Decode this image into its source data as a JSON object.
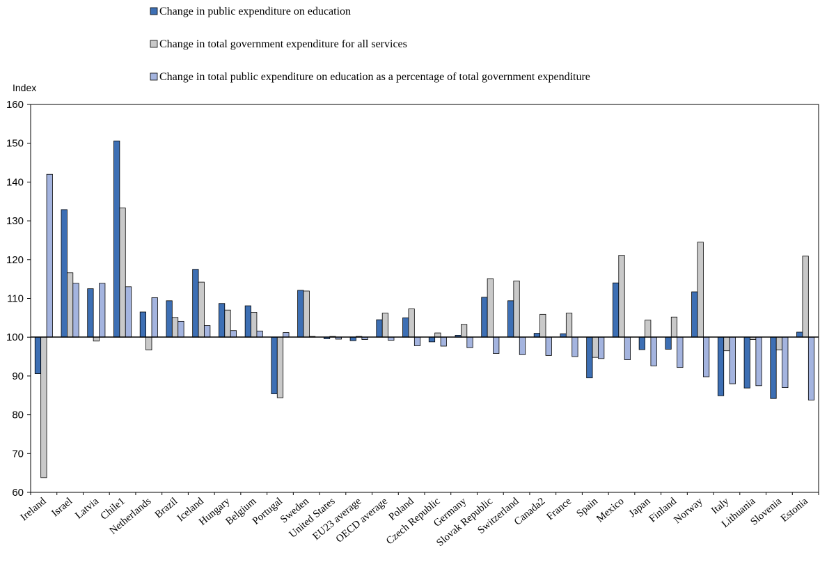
{
  "chart_data": {
    "type": "bar",
    "ylabel": "Index",
    "ylim": [
      60,
      160
    ],
    "yticks": [
      60,
      70,
      80,
      90,
      100,
      110,
      120,
      130,
      140,
      150,
      160
    ],
    "baseline": 100,
    "grid": false,
    "legend_position": "top",
    "categories": [
      "Ireland",
      "Israel",
      "Latvia",
      "Chile1",
      "Netherlands",
      "Brazil",
      "Iceland",
      "Hungary",
      "Belgium",
      "Portugal",
      "Sweden",
      "United States",
      "EU23 average",
      "OECD average",
      "Poland",
      "Czech Republic",
      "Germany",
      "Slovak Republic",
      "Switzerland",
      "Canada2",
      "France",
      "Spain",
      "Mexico",
      "Japan",
      "Finland",
      "Norway",
      "Italy",
      "Lithuania",
      "Slovenia",
      "Estonia"
    ],
    "series": [
      {
        "name": "Change in public expenditure on education",
        "color": "#3d6fb4",
        "values": [
          90.6,
          132.9,
          112.5,
          150.6,
          106.5,
          109.4,
          117.5,
          108.7,
          108.1,
          85.4,
          112.1,
          99.6,
          99.1,
          104.5,
          105.0,
          98.8,
          100.5,
          110.3,
          109.4,
          101.0,
          100.9,
          89.5,
          114.0,
          96.8,
          96.9,
          111.7,
          84.9,
          86.9,
          84.2,
          101.3
        ]
      },
      {
        "name": "Change in total government expenditure for all services",
        "color": "#c9c9c9",
        "values": [
          63.8,
          116.6,
          99.0,
          133.3,
          96.7,
          105.1,
          114.2,
          107.0,
          106.4,
          84.4,
          111.9,
          100.2,
          100.2,
          106.2,
          107.3,
          101.1,
          103.3,
          115.1,
          114.5,
          105.9,
          106.2,
          94.8,
          121.1,
          104.4,
          105.2,
          124.5,
          96.5,
          99.4,
          96.7,
          120.9
        ]
      },
      {
        "name": "Change in total public expenditure on education as a percentage of total government expenditure",
        "color": "#a4b4df",
        "values": [
          142.0,
          113.9,
          113.9,
          113.0,
          110.2,
          104.1,
          103.0,
          101.7,
          101.6,
          101.2,
          100.2,
          99.5,
          99.4,
          99.2,
          97.8,
          97.7,
          97.3,
          95.8,
          95.5,
          95.3,
          95.0,
          94.5,
          94.2,
          92.6,
          92.2,
          89.8,
          88.0,
          87.5,
          87.0,
          83.8
        ]
      }
    ]
  }
}
